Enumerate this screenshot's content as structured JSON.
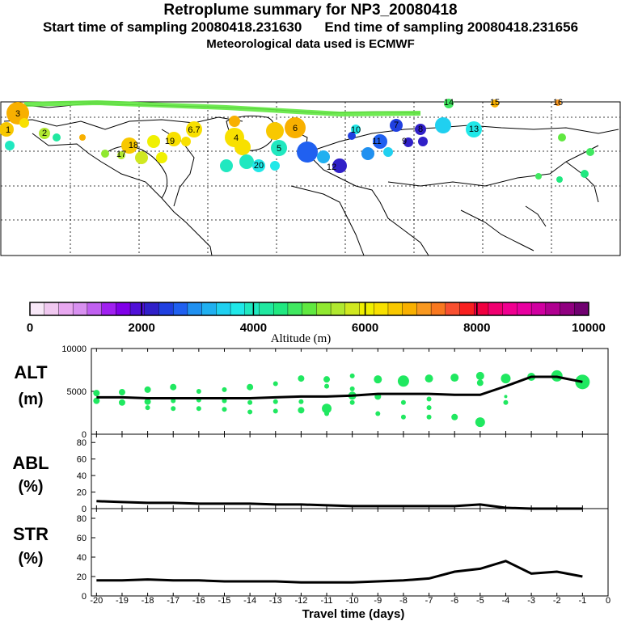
{
  "title": "Retroplume summary for NP3_20080418",
  "start_label": "Start time of sampling 20080418.231630",
  "end_label": "End time of sampling 20080418.231656",
  "met_label": "Meteorological data used is ECMWF",
  "colorbar": {
    "ticks": [
      "0",
      "2000",
      "4000",
      "6000",
      "8000",
      "10000"
    ],
    "label": "Altitude (m)",
    "colors": [
      "#f8e8f8",
      "#f0c8f0",
      "#e8a8f0",
      "#d890f0",
      "#c060f0",
      "#a020f0",
      "#8000e8",
      "#5010d8",
      "#3020c8",
      "#2040e0",
      "#2060f0",
      "#2090f0",
      "#20b0f0",
      "#20d0f0",
      "#20e8e8",
      "#20e8c0",
      "#20e8a0",
      "#20e880",
      "#40e860",
      "#60e840",
      "#90e830",
      "#b0e830",
      "#d0e820",
      "#f0f000",
      "#f8e000",
      "#f8c800",
      "#f8b000",
      "#f89820",
      "#f87820",
      "#f85030",
      "#f82020",
      "#f00040",
      "#f00070",
      "#f00090",
      "#e800a0",
      "#d000a0",
      "#b00090",
      "#900080",
      "#700070"
    ]
  },
  "map": {
    "labels": [
      "3",
      "1",
      "2",
      "4",
      "5",
      "6",
      "6.7",
      "9",
      "10",
      "11",
      "12",
      "13",
      "14",
      "15",
      "16",
      "17",
      "18",
      "19",
      "20",
      "7",
      "8"
    ]
  },
  "chart_data": [
    {
      "type": "scatter",
      "panel": "ALT",
      "ylabel_line1": "ALT",
      "ylabel_line2": "(m)",
      "ylim": [
        0,
        10000
      ],
      "yticks": [
        "10000",
        "5000",
        "0"
      ],
      "mean_line": {
        "x": [
          -20,
          -19,
          -18,
          -17,
          -16,
          -15,
          -14,
          -13,
          -12,
          -11,
          -10,
          -9,
          -8,
          -7,
          -6,
          -5,
          -4,
          -3,
          -2,
          -1
        ],
        "y": [
          4300,
          4300,
          4200,
          4200,
          4200,
          4200,
          4200,
          4300,
          4400,
          4400,
          4500,
          4700,
          4700,
          4700,
          4600,
          4600,
          5600,
          6700,
          6700,
          6100
        ]
      },
      "dots": [
        {
          "x": -20,
          "y": 4800,
          "s": 4
        },
        {
          "x": -20,
          "y": 3900,
          "s": 4
        },
        {
          "x": -19,
          "y": 4900,
          "s": 4
        },
        {
          "x": -19,
          "y": 3700,
          "s": 4
        },
        {
          "x": -18,
          "y": 5200,
          "s": 4
        },
        {
          "x": -18,
          "y": 3800,
          "s": 4
        },
        {
          "x": -18,
          "y": 3100,
          "s": 3
        },
        {
          "x": -17,
          "y": 5500,
          "s": 4
        },
        {
          "x": -17,
          "y": 3900,
          "s": 3
        },
        {
          "x": -17,
          "y": 3000,
          "s": 3
        },
        {
          "x": -16,
          "y": 5000,
          "s": 3
        },
        {
          "x": -16,
          "y": 4000,
          "s": 3
        },
        {
          "x": -16,
          "y": 3000,
          "s": 3
        },
        {
          "x": -15,
          "y": 5200,
          "s": 3
        },
        {
          "x": -15,
          "y": 3900,
          "s": 3
        },
        {
          "x": -15,
          "y": 2900,
          "s": 3
        },
        {
          "x": -14,
          "y": 5500,
          "s": 4
        },
        {
          "x": -14,
          "y": 3700,
          "s": 3
        },
        {
          "x": -14,
          "y": 2600,
          "s": 3
        },
        {
          "x": -13,
          "y": 5900,
          "s": 3
        },
        {
          "x": -13,
          "y": 3800,
          "s": 3
        },
        {
          "x": -13,
          "y": 2700,
          "s": 3
        },
        {
          "x": -12,
          "y": 6500,
          "s": 4
        },
        {
          "x": -12,
          "y": 3800,
          "s": 3
        },
        {
          "x": -12,
          "y": 2800,
          "s": 4
        },
        {
          "x": -11,
          "y": 6400,
          "s": 4
        },
        {
          "x": -11,
          "y": 5600,
          "s": 3
        },
        {
          "x": -11,
          "y": 3000,
          "s": 6
        },
        {
          "x": -11,
          "y": 2400,
          "s": 3
        },
        {
          "x": -10,
          "y": 6800,
          "s": 3
        },
        {
          "x": -10,
          "y": 5300,
          "s": 3
        },
        {
          "x": -10,
          "y": 4500,
          "s": 5
        },
        {
          "x": -10,
          "y": 3700,
          "s": 3
        },
        {
          "x": -9,
          "y": 6400,
          "s": 5
        },
        {
          "x": -9,
          "y": 4400,
          "s": 4
        },
        {
          "x": -9,
          "y": 2400,
          "s": 3
        },
        {
          "x": -8,
          "y": 6200,
          "s": 7
        },
        {
          "x": -8,
          "y": 3700,
          "s": 3
        },
        {
          "x": -8,
          "y": 2000,
          "s": 3
        },
        {
          "x": -7,
          "y": 6500,
          "s": 5
        },
        {
          "x": -7,
          "y": 4100,
          "s": 3
        },
        {
          "x": -7,
          "y": 3100,
          "s": 3
        },
        {
          "x": -7,
          "y": 2000,
          "s": 3
        },
        {
          "x": -6,
          "y": 6600,
          "s": 5
        },
        {
          "x": -6,
          "y": 2000,
          "s": 4
        },
        {
          "x": -5,
          "y": 6800,
          "s": 5
        },
        {
          "x": -5,
          "y": 6000,
          "s": 4
        },
        {
          "x": -5,
          "y": 1400,
          "s": 6
        },
        {
          "x": -4,
          "y": 6500,
          "s": 6
        },
        {
          "x": -4,
          "y": 4400,
          "s": 2
        },
        {
          "x": -4,
          "y": 3700,
          "s": 3
        },
        {
          "x": -3,
          "y": 6700,
          "s": 5
        },
        {
          "x": -2,
          "y": 6800,
          "s": 7
        },
        {
          "x": -1,
          "y": 6100,
          "s": 9
        }
      ]
    },
    {
      "type": "line",
      "panel": "ABL",
      "ylabel_line1": "ABL",
      "ylabel_line2": "(%)",
      "ylim": [
        0,
        90
      ],
      "yticks": [
        "80",
        "60",
        "40",
        "20",
        "0"
      ],
      "x": [
        -20,
        -19,
        -18,
        -17,
        -16,
        -15,
        -14,
        -13,
        -12,
        -11,
        -10,
        -9,
        -8,
        -7,
        -6,
        -5,
        -4,
        -3,
        -2,
        -1
      ],
      "y": [
        9,
        8,
        7,
        7,
        6,
        6,
        6,
        5,
        5,
        4,
        3,
        3,
        3,
        3,
        3,
        5,
        1,
        0,
        0,
        0
      ]
    },
    {
      "type": "line",
      "panel": "STR",
      "ylabel_line1": "STR",
      "ylabel_line2": "(%)",
      "ylim": [
        0,
        90
      ],
      "yticks": [
        "80",
        "60",
        "40",
        "20",
        "0"
      ],
      "x": [
        -20,
        -19,
        -18,
        -17,
        -16,
        -15,
        -14,
        -13,
        -12,
        -11,
        -10,
        -9,
        -8,
        -7,
        -6,
        -5,
        -4,
        -3,
        -2,
        -1
      ],
      "y": [
        16,
        16,
        17,
        16,
        16,
        15,
        15,
        15,
        14,
        14,
        14,
        15,
        16,
        18,
        25,
        28,
        36,
        23,
        25,
        20
      ]
    }
  ],
  "xaxis": {
    "ticks": [
      "-20",
      "-19",
      "-18",
      "-17",
      "-16",
      "-15",
      "-14",
      "-13",
      "-12",
      "-11",
      "-10",
      "-9",
      "-8",
      "-7",
      "-6",
      "-5",
      "-4",
      "-3",
      "-2",
      "-1",
      "0"
    ],
    "label": "Travel time (days)"
  }
}
